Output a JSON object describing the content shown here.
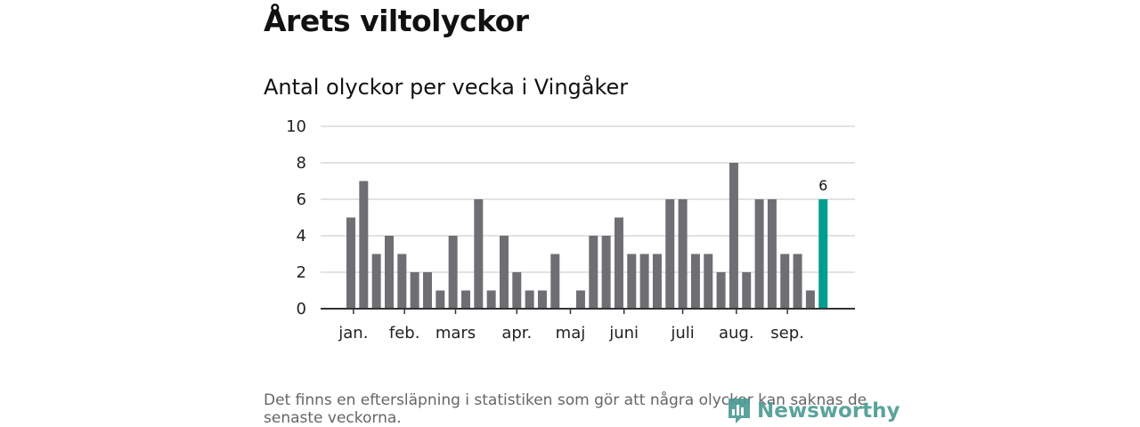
{
  "header": {
    "title": "Årets viltolyckor",
    "subtitle": "Antal olyckor per vecka i Vingåker"
  },
  "footer": {
    "note": "Det finns en eftersläpning i statistiken som gör att några olyckor kan saknas de senaste veckorna.",
    "logo_text": "Newsworthy",
    "logo_icon": "bar-chart-icon"
  },
  "colors": {
    "bar": "#6f6e73",
    "highlight": "#009e8e",
    "grid": "#d9d9d9",
    "baseline": "#333333",
    "logo": "#4a9a92"
  },
  "chart_data": {
    "type": "bar",
    "title": "",
    "xlabel": "",
    "ylabel": "",
    "ylim": [
      0,
      10
    ],
    "yticks": [
      0,
      2,
      4,
      6,
      8,
      10
    ],
    "grid": true,
    "values": [
      5,
      7,
      3,
      4,
      3,
      2,
      2,
      1,
      4,
      1,
      6,
      1,
      4,
      2,
      1,
      1,
      3,
      0,
      1,
      4,
      4,
      5,
      3,
      3,
      3,
      6,
      6,
      3,
      3,
      2,
      8,
      2,
      6,
      6,
      3,
      3,
      1,
      6
    ],
    "highlight_index": 37,
    "highlight_label": "6",
    "month_labels": [
      {
        "label": "jan.",
        "week_index": 0.2
      },
      {
        "label": "feb.",
        "week_index": 4.2
      },
      {
        "label": "mars",
        "week_index": 8.2
      },
      {
        "label": "apr.",
        "week_index": 13.0
      },
      {
        "label": "maj",
        "week_index": 17.2
      },
      {
        "label": "juni",
        "week_index": 21.4
      },
      {
        "label": "juli",
        "week_index": 26.0
      },
      {
        "label": "aug.",
        "week_index": 30.2
      },
      {
        "label": "sep.",
        "week_index": 34.2
      }
    ]
  }
}
